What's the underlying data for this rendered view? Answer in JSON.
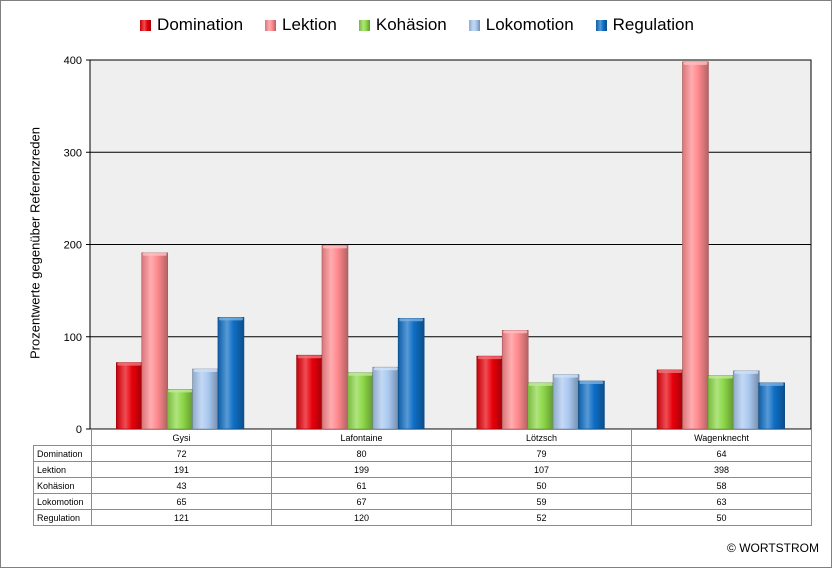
{
  "chart_data": {
    "type": "bar",
    "categories": [
      "Gysi",
      "Lafontaine",
      "Lötzsch",
      "Wagenknecht"
    ],
    "series": [
      {
        "name": "Domination",
        "values": [
          72,
          80,
          79,
          64
        ],
        "color": "#e8000b"
      },
      {
        "name": "Lektion",
        "values": [
          191,
          199,
          107,
          398
        ],
        "color": "#ff8a8e"
      },
      {
        "name": "Kohäsion",
        "values": [
          43,
          61,
          50,
          58
        ],
        "color": "#8dd848"
      },
      {
        "name": "Lokomotion",
        "values": [
          65,
          67,
          59,
          63
        ],
        "color": "#a9c8f0"
      },
      {
        "name": "Regulation",
        "values": [
          121,
          120,
          52,
          50
        ],
        "color": "#0f6fc6"
      }
    ],
    "title": "",
    "xlabel": "",
    "ylabel": "Prozentwerte gegenüber Referenzreden",
    "ylim": [
      0,
      400
    ],
    "yticks": [
      0,
      100,
      200,
      300,
      400
    ],
    "grid": true,
    "legend": "top",
    "plot_background": "#efefef"
  },
  "copyright": "© WORTSTROM"
}
